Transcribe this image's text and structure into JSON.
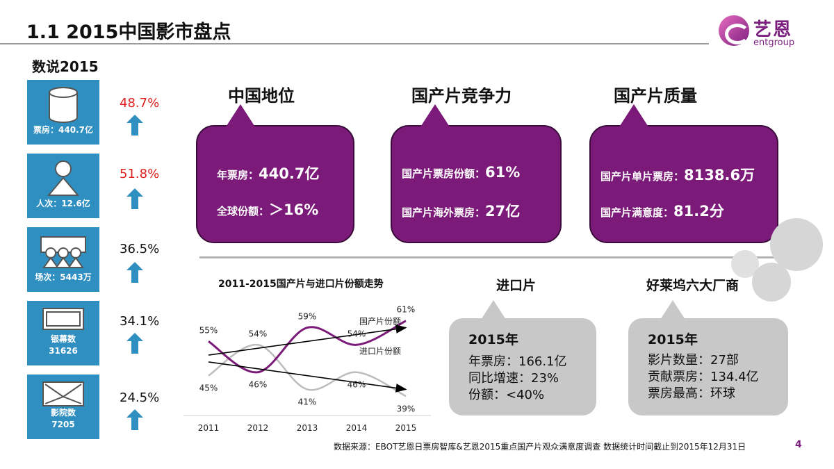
{
  "header": {
    "title": "1.1 2015中国影市盘点"
  },
  "logo": {
    "cn": "艺恩",
    "en": "entgroup"
  },
  "subtitle": "数说2015",
  "stats": [
    {
      "label": "票房：440.7亿",
      "pct": "48.7%",
      "pct_color": "#e02020",
      "icon": "cylinder-icon"
    },
    {
      "label": "人次：12.6亿",
      "pct": "51.8%",
      "pct_color": "#e02020",
      "icon": "person-icon"
    },
    {
      "label": "场次：5443万",
      "pct": "36.5%",
      "pct_color": "#111111",
      "icon": "audience-screen-icon"
    },
    {
      "label_line1": "银幕数",
      "label_line2": "31626",
      "pct": "34.1%",
      "pct_color": "#111111",
      "icon": "screen-icon"
    },
    {
      "label_line1": "影院数",
      "label_line2": "7205",
      "pct": "24.5%",
      "pct_color": "#111111",
      "icon": "cinema-icon"
    }
  ],
  "panels": [
    {
      "heading": "中国地位",
      "line1_label": "年票房：",
      "line1_value": "440.7亿",
      "line2_label": "全球份额：",
      "line2_value": "＞16%"
    },
    {
      "heading": "国产片竞争力",
      "line1_label": "国产片票房份额：",
      "line1_value": "61%",
      "line2_label": "国产片海外票房：",
      "line2_value": "27亿"
    },
    {
      "heading": "国产片质量",
      "line1_label": "国产片单片票房：",
      "line1_value": "8138.6万",
      "line2_label": "国产片满意度：",
      "line2_value": "81.2分"
    }
  ],
  "chart_data": {
    "type": "line",
    "title": "2011-2015国产片与进口片份额走势",
    "categories": [
      "2011",
      "2012",
      "2013",
      "2014",
      "2015"
    ],
    "series": [
      {
        "name": "国产片份额",
        "values": [
          55,
          46,
          59,
          54,
          61
        ],
        "color": "#7b1a78",
        "value_labels": [
          "55%",
          "46%",
          "59%",
          "54%",
          "61%"
        ]
      },
      {
        "name": "进口片份额",
        "values": [
          45,
          54,
          41,
          46,
          39
        ],
        "color": "#bcbcbc",
        "value_labels": [
          "45%",
          "54%",
          "41%",
          "46%",
          "39%"
        ]
      }
    ],
    "trend_arrows": true,
    "xlabel": "",
    "ylabel": "",
    "ylim": [
      35,
      65
    ]
  },
  "imports": {
    "heading": "进口片",
    "year": "2015年",
    "lines": [
      "年票房：166.1亿",
      "同比增速：23%",
      "份额：<40%"
    ]
  },
  "hollywood": {
    "heading": "好莱坞六大厂商",
    "year": "2015年",
    "lines": [
      "影片数量：27部",
      "贡献票房：134.4亿",
      "票房最高：环球"
    ]
  },
  "footer": {
    "source": "数据来源：EBOT艺恩日票房智库&艺恩2015重点国产片观众满意度调查   数据统计时间截止到2015年12月31日",
    "page": "4"
  }
}
